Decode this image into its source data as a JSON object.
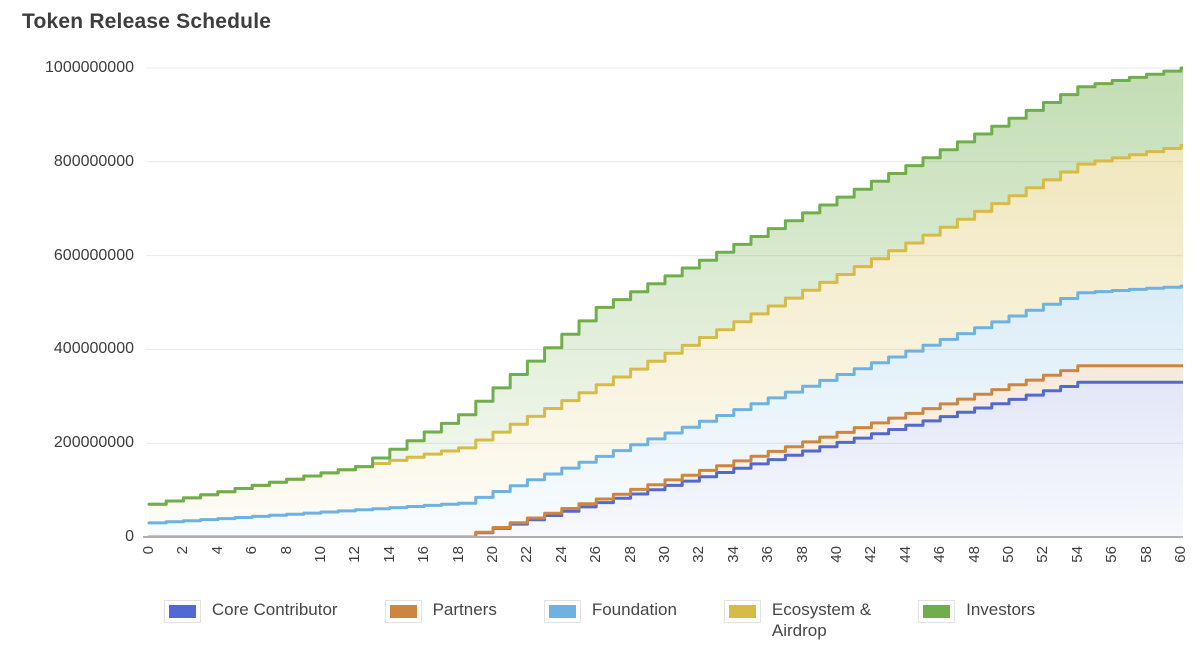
{
  "title": "Token Release Schedule",
  "chart_data": {
    "type": "area",
    "stacking": "stacked",
    "step": "after",
    "title": "Token Release Schedule",
    "xlabel": "",
    "ylabel": "",
    "x_unit": "months",
    "xlim": [
      0,
      60
    ],
    "ylim": [
      0,
      1000000000
    ],
    "grid": true,
    "legend_position": "bottom",
    "axis_color": "#b0b0b0",
    "grid_color": "#e8e8e8",
    "text_color": "#3d3d3d",
    "value_unit_multiplier": 1000000,
    "x_ticks": [
      "0",
      "2",
      "4",
      "6",
      "8",
      "10",
      "12",
      "14",
      "16",
      "18",
      "20",
      "22",
      "24",
      "26",
      "28",
      "30",
      "32",
      "34",
      "36",
      "38",
      "40",
      "42",
      "44",
      "46",
      "48",
      "50",
      "52",
      "54",
      "56",
      "58",
      "60"
    ],
    "y_ticks": [
      "0",
      "200000000",
      "400000000",
      "600000000",
      "800000000",
      "1000000000"
    ],
    "series": [
      {
        "name": "Core Contributor",
        "color": "#5169d1",
        "total_tokens": 330000000,
        "monthly_cumulative_millions": [
          0,
          0,
          0,
          0,
          0,
          0,
          0,
          0,
          0,
          0,
          0,
          0,
          0,
          0,
          0,
          0,
          0,
          0,
          0,
          9.17,
          18.33,
          27.5,
          36.67,
          45.83,
          55,
          64.17,
          73.33,
          82.5,
          91.67,
          100.83,
          110,
          119.17,
          128.33,
          137.5,
          146.67,
          155.83,
          165,
          174.17,
          183.33,
          192.5,
          201.67,
          210.83,
          220,
          229.17,
          238.33,
          247.5,
          256.67,
          265.83,
          275,
          284.17,
          293.33,
          302.5,
          311.67,
          320.83,
          330,
          330,
          330,
          330,
          330,
          330,
          330
        ]
      },
      {
        "name": "Partners",
        "color": "#cd8640",
        "total_tokens": 35000000,
        "monthly_cumulative_millions": [
          0,
          0,
          0,
          0,
          0,
          0,
          0,
          0,
          0,
          0,
          0,
          0,
          0,
          0,
          0,
          0,
          0,
          0,
          0,
          0.97,
          1.94,
          2.92,
          3.89,
          4.86,
          5.83,
          6.81,
          7.78,
          8.75,
          9.72,
          10.69,
          11.67,
          12.64,
          13.61,
          14.58,
          15.56,
          16.53,
          17.5,
          18.47,
          19.44,
          20.42,
          21.39,
          22.36,
          23.33,
          24.31,
          25.28,
          26.25,
          27.22,
          28.19,
          29.17,
          30.14,
          31.11,
          32.08,
          33.06,
          34.03,
          35,
          35,
          35,
          35,
          35,
          35,
          35
        ]
      },
      {
        "name": "Foundation",
        "color": "#6db2e2",
        "total_tokens": 170000000,
        "monthly_cumulative_millions": [
          30,
          32.33,
          34.67,
          37,
          39.33,
          41.67,
          44,
          46.33,
          48.67,
          51,
          53.33,
          55.67,
          58,
          60.33,
          62.67,
          65,
          67.33,
          69.67,
          72,
          74.33,
          76.67,
          79,
          81.33,
          83.67,
          86,
          88.33,
          90.67,
          93,
          95.33,
          97.67,
          100,
          102.33,
          104.67,
          107,
          109.33,
          111.67,
          114,
          116.33,
          118.67,
          121,
          123.33,
          125.67,
          128,
          130.33,
          132.67,
          135,
          137.33,
          139.67,
          142,
          144.33,
          146.67,
          149,
          151.33,
          153.67,
          156,
          158.33,
          160.67,
          163,
          165.33,
          167.67,
          170
        ]
      },
      {
        "name": "Ecosystem & Airdrop",
        "color": "#d7bb47",
        "total_tokens": 300000000,
        "monthly_cumulative_millions": [
          40,
          44.33,
          48.67,
          53,
          57.33,
          61.67,
          66,
          70.33,
          74.67,
          79,
          83.33,
          87.67,
          92,
          96.33,
          100.67,
          105,
          109.33,
          113.67,
          118,
          122.33,
          126.67,
          131,
          135.33,
          139.67,
          144,
          148.33,
          152.67,
          157,
          161.33,
          165.67,
          170,
          174.33,
          178.67,
          183,
          187.33,
          191.67,
          196,
          200.33,
          204.67,
          209,
          213.33,
          217.67,
          222,
          226.33,
          230.67,
          235,
          239.33,
          243.67,
          248,
          252.33,
          256.67,
          261,
          265.33,
          269.67,
          274,
          278.33,
          282.67,
          287,
          291.33,
          295.67,
          300
        ]
      },
      {
        "name": "Investors",
        "color": "#70ae4c",
        "total_tokens": 165000000,
        "monthly_cumulative_millions": [
          0,
          0,
          0,
          0,
          0,
          0,
          0,
          0,
          0,
          0,
          0,
          0,
          0,
          11.79,
          23.57,
          35.36,
          47.14,
          58.93,
          70.71,
          82.5,
          94.29,
          106.07,
          117.86,
          129.64,
          141.43,
          153.21,
          165,
          165,
          165,
          165,
          165,
          165,
          165,
          165,
          165,
          165,
          165,
          165,
          165,
          165,
          165,
          165,
          165,
          165,
          165,
          165,
          165,
          165,
          165,
          165,
          165,
          165,
          165,
          165,
          165,
          165,
          165,
          165,
          165,
          165,
          165
        ]
      }
    ]
  }
}
